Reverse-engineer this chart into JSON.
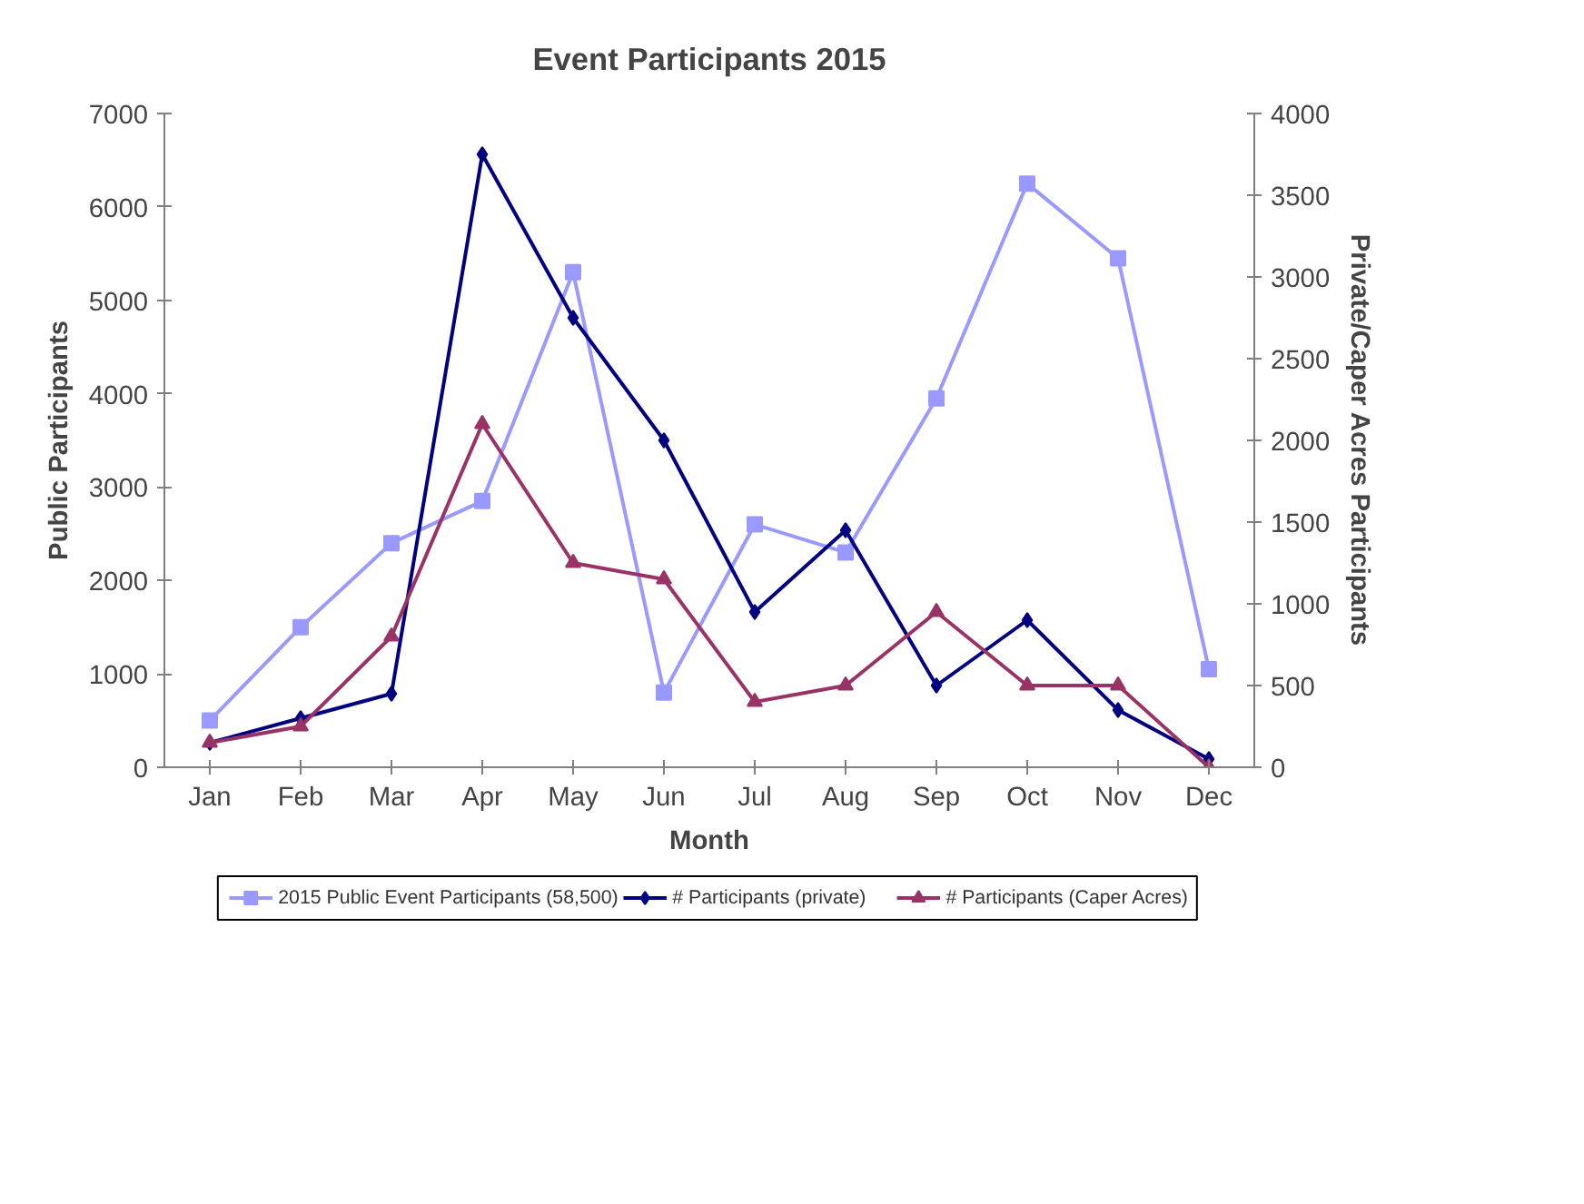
{
  "chart_data": {
    "type": "line",
    "title": "Event Participants 2015",
    "xlabel": "Month",
    "ylabel": "Public Participants",
    "y2label": "Private/Caper Acres Participants",
    "categories": [
      "Jan",
      "Feb",
      "Mar",
      "Apr",
      "May",
      "Jun",
      "Jul",
      "Aug",
      "Sep",
      "Oct",
      "Nov",
      "Dec"
    ],
    "ylim": [
      0,
      7000
    ],
    "yticks": [
      0,
      1000,
      2000,
      3000,
      4000,
      5000,
      6000,
      7000
    ],
    "y2lim": [
      0,
      4000
    ],
    "y2ticks": [
      0,
      500,
      1000,
      1500,
      2000,
      2500,
      3000,
      3500,
      4000
    ],
    "grid": false,
    "legend": "bottom",
    "series": [
      {
        "name": "2015 Public Event Participants (58,500)",
        "color": "#9999ff",
        "marker": "square",
        "values": [
          500,
          1500,
          2400,
          2850,
          5300,
          800,
          2600,
          2300,
          3950,
          6250,
          5450,
          1050
        ]
      },
      {
        "name": "# Participants (private)",
        "color": "#000080",
        "marker": "diamond",
        "axis": "y2",
        "values": [
          150,
          300,
          450,
          3750,
          2750,
          2000,
          950,
          1450,
          500,
          900,
          350,
          50
        ]
      },
      {
        "name": "# Participants (Caper Acres)",
        "color": "#993366",
        "marker": "triangle",
        "axis": "y2",
        "values": [
          150,
          250,
          800,
          2100,
          1250,
          1150,
          400,
          500,
          950,
          500,
          500,
          0
        ]
      }
    ]
  }
}
